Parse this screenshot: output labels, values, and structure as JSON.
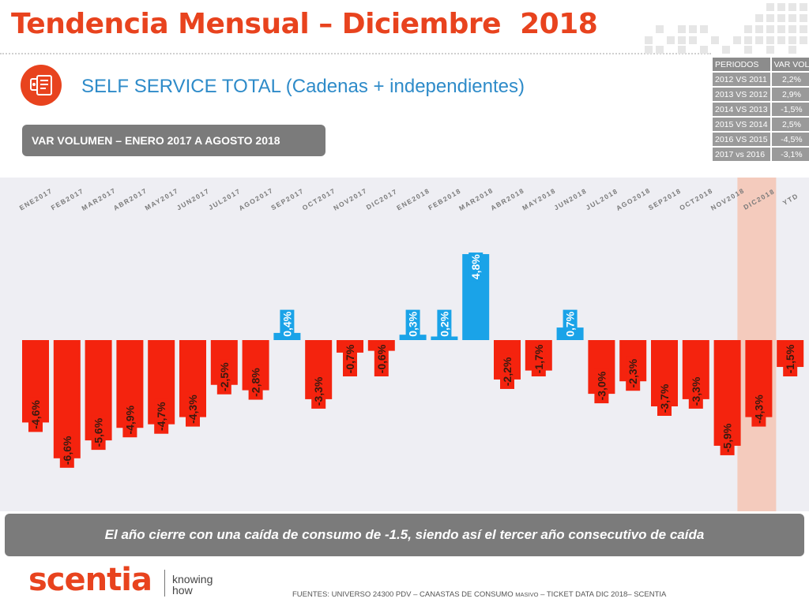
{
  "header": {
    "title": "Tendencia Mensual – Diciembre  2018",
    "subtitle": "SELF SERVICE TOTAL (Cadenas + independientes)",
    "section_label": "VAR VOLUMEN – ENERO 2017 A AGOSTO 2018"
  },
  "periods_table": {
    "headers": [
      "PERIODOS",
      "VAR VOL"
    ],
    "rows": [
      [
        "2012 VS 2011",
        "2,2%"
      ],
      [
        "2013 VS 2012",
        "2,9%"
      ],
      [
        "2014 VS 2013",
        "-1,5%"
      ],
      [
        "2015 VS 2014",
        "2,5%"
      ],
      [
        "2016 VS 2015",
        "-4,5%"
      ],
      [
        "2017 vs 2016",
        "-3,1%"
      ]
    ]
  },
  "chart_data": {
    "type": "bar",
    "title": "",
    "xlabel": "",
    "ylabel": "",
    "categories": [
      "ENE2017",
      "FEB2017",
      "MAR2017",
      "ABR2017",
      "MAY2017",
      "JUN2017",
      "JUL2017",
      "AGO2017",
      "SEP2017",
      "OCT2017",
      "NOV2017",
      "DIC2017",
      "ENE2018",
      "FEB2018",
      "MAR2018",
      "ABR2018",
      "MAY2018",
      "JUN2018",
      "JUL2018",
      "AGO2018",
      "SEP2018",
      "OCT2018",
      "NOV2018",
      "DIC2018",
      "YTD"
    ],
    "values": [
      -4.6,
      -6.6,
      -5.6,
      -4.9,
      -4.7,
      -4.3,
      -2.5,
      -2.8,
      0.4,
      -3.3,
      -0.7,
      -0.6,
      0.3,
      0.2,
      4.8,
      -2.2,
      -1.7,
      0.7,
      -3.0,
      -2.3,
      -3.7,
      -3.3,
      -5.9,
      -4.3,
      -1.5
    ],
    "labels": [
      "-4,6%",
      "-6,6%",
      "-5,6%",
      "-4,9%",
      "-4,7%",
      "-4,3%",
      "-2,5%",
      "-2,8%",
      "0,4%",
      "-3,3%",
      "-0,7%",
      "-0,6%",
      "0,3%",
      "0,2%",
      "4,8%",
      "-2,2%",
      "-1,7%",
      "0,7%",
      "-3,0%",
      "-2,3%",
      "-3,7%",
      "-3,3%",
      "-5,9%",
      "-4,3%",
      "-1,5%"
    ],
    "highlighted_category": "DIC2018",
    "colors": {
      "negative": "#f4230e",
      "positive": "#1aa3e8",
      "highlight_band": "#f4cbbd",
      "plot_background": "#eeeef3"
    }
  },
  "banner": {
    "text": "El año cierre con una caída de consumo de -1.5, siendo así el tercer año consecutivo de caída"
  },
  "footer": {
    "logo": "scentia",
    "tagline_line1": "knowing",
    "tagline_line2": "how",
    "source_prefix": "FUENTES: UNIVERSO 24300 PDV – CANASTAS DE CONSUMO ",
    "source_small": "MASIVO",
    "source_suffix": " – TICKET DATA DIC 2018– SCENTIA"
  },
  "icons": {
    "header_icon": "report-document-icon"
  }
}
